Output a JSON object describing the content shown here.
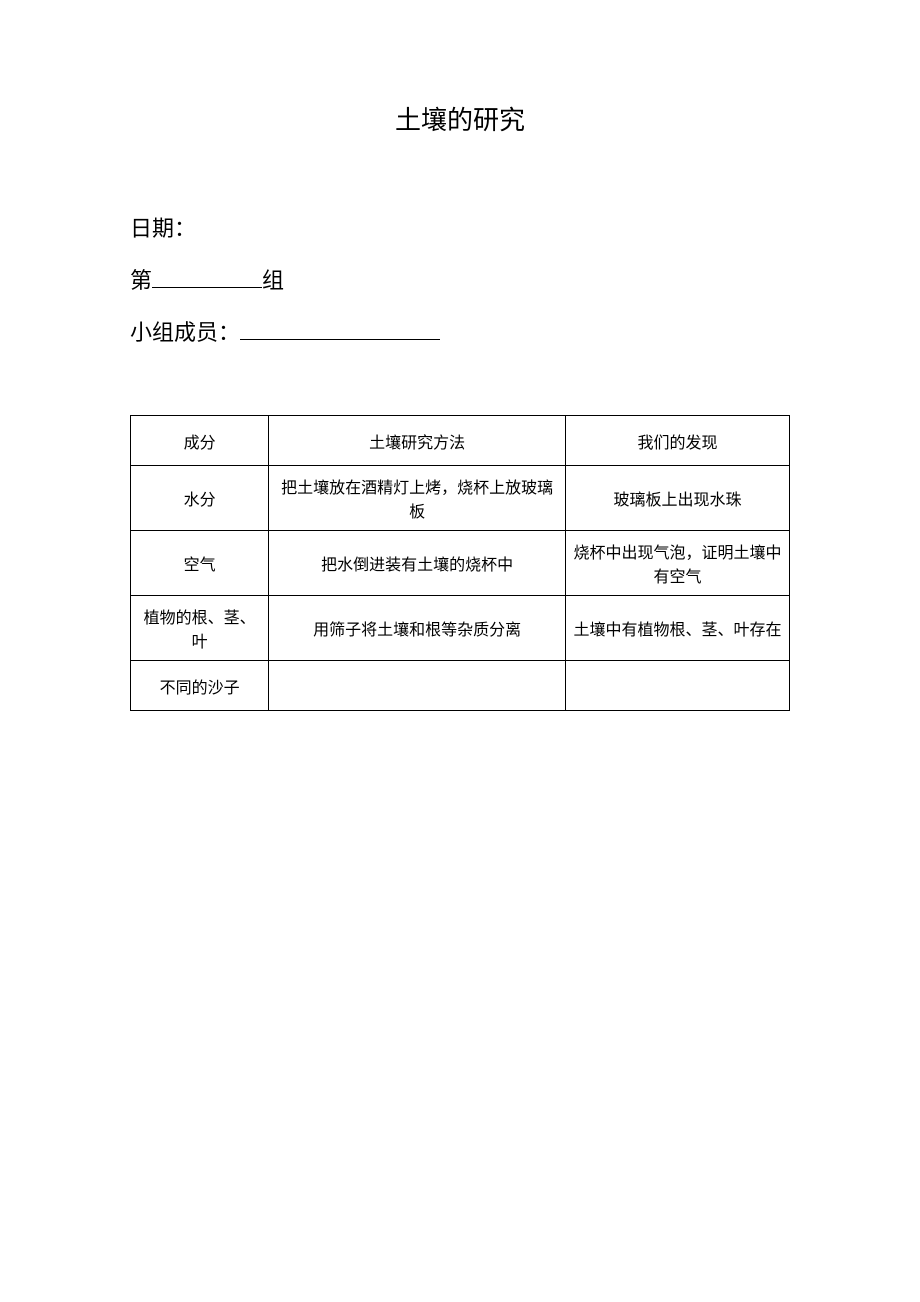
{
  "title": "土壤的研究",
  "info": {
    "date_label": "日期：",
    "group_prefix": "第",
    "group_suffix": "组",
    "members_label": "小组成员："
  },
  "table": {
    "headers": {
      "col1": "成分",
      "col2": "土壤研究方法",
      "col3": "我们的发现"
    },
    "rows": [
      {
        "component": "水分",
        "method": "把土壤放在酒精灯上烤，烧杯上放玻璃板",
        "finding": "玻璃板上出现水珠"
      },
      {
        "component": "空气",
        "method": "把水倒进装有土壤的烧杯中",
        "finding": "烧杯中出现气泡，证明土壤中有空气"
      },
      {
        "component": "植物的根、茎、叶",
        "method": "用筛子将土壤和根等杂质分离",
        "finding": "土壤中有植物根、茎、叶存在"
      },
      {
        "component": "不同的沙子",
        "method": "",
        "finding": ""
      }
    ]
  },
  "styling": {
    "background_color": "#ffffff",
    "text_color": "#000000",
    "border_color": "#000000",
    "title_fontsize": 26,
    "info_fontsize": 22,
    "table_fontsize": 16,
    "font_family": "SimSun"
  }
}
